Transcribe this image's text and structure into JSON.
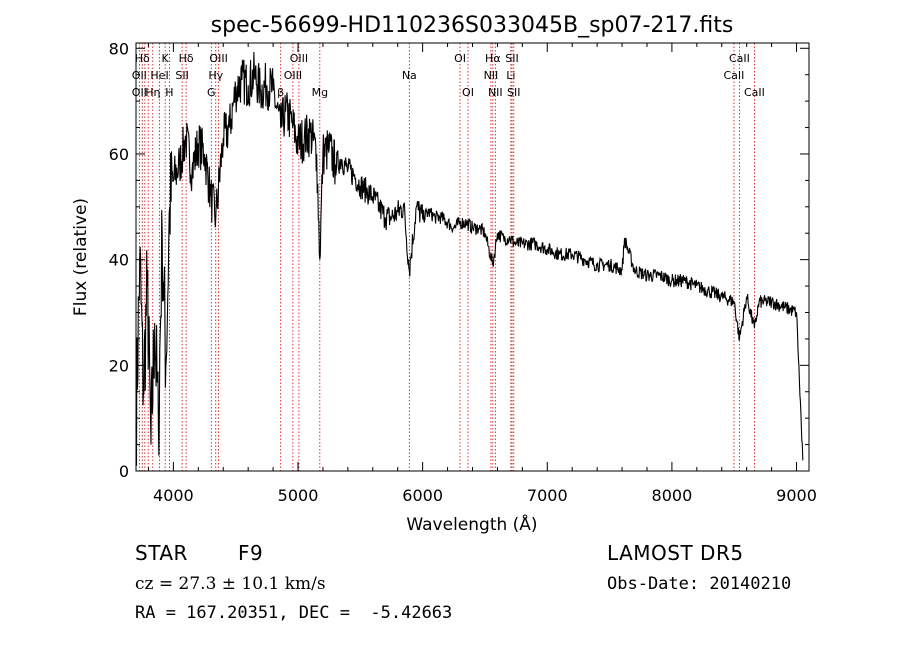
{
  "chart_data": {
    "type": "line",
    "title": "spec-56699-HD110236S033045B_sp07-217.fits",
    "xlabel": "Wavelength (Å)",
    "ylabel": "Flux (relative)",
    "xlim": [
      3700,
      9100
    ],
    "ylim": [
      0,
      81
    ],
    "x_ticks": [
      4000,
      5000,
      6000,
      7000,
      8000,
      9000
    ],
    "x_tick_labels": [
      "4000",
      "5000",
      "6000",
      "7000",
      "8000",
      "9000"
    ],
    "y_ticks": [
      0,
      20,
      40,
      60,
      80
    ],
    "y_tick_labels": [
      "0",
      "20",
      "40",
      "60",
      "80"
    ],
    "grid": false,
    "line_color": "#000000",
    "marker_color": "#cc0000",
    "series": [
      {
        "x": [
          3700,
          3730,
          3760,
          3790,
          3820,
          3850,
          3880,
          3910,
          3940,
          3970,
          4000,
          4050,
          4100,
          4150,
          4200,
          4250,
          4300,
          4340,
          4400,
          4450,
          4500,
          4550,
          4600,
          4650,
          4700,
          4750,
          4800,
          4861,
          4900,
          4950,
          5000,
          5050,
          5100,
          5150,
          5175,
          5200,
          5250,
          5300,
          5350,
          5400,
          5450,
          5500,
          5550,
          5600,
          5650,
          5700,
          5750,
          5800,
          5850,
          5893,
          5950,
          6000,
          6050,
          6100,
          6150,
          6200,
          6250,
          6300,
          6350,
          6400,
          6450,
          6500,
          6563,
          6600,
          6650,
          6700,
          6750,
          6800,
          6900,
          7000,
          7100,
          7200,
          7300,
          7400,
          7500,
          7600,
          7620,
          7700,
          7800,
          7900,
          8000,
          8100,
          8200,
          8300,
          8400,
          8500,
          8542,
          8600,
          8662,
          8700,
          8800,
          8900,
          9000,
          9050
        ],
        "values": [
          8,
          40,
          15,
          35,
          5,
          28,
          8,
          45,
          20,
          50,
          55,
          58,
          63,
          57,
          62,
          60,
          52,
          48,
          63,
          65,
          72,
          74,
          73,
          75,
          72,
          73,
          72,
          65,
          68,
          66,
          62,
          63,
          64,
          60,
          40,
          60,
          61,
          58,
          59,
          57,
          56,
          54,
          53,
          52,
          50,
          48,
          48,
          49,
          50,
          38,
          50,
          48,
          49,
          48,
          48,
          47,
          46,
          47,
          47,
          46,
          46,
          45,
          39,
          45,
          44,
          44,
          43,
          43,
          43,
          42,
          41,
          41,
          40,
          39,
          39,
          38,
          44,
          38,
          37,
          37,
          36,
          36,
          35,
          34,
          33,
          32,
          25,
          33,
          27,
          32,
          32,
          31,
          30,
          2
        ]
      }
    ],
    "annotations": [
      {
        "label": "Hδ",
        "wave": 3750,
        "row": 0
      },
      {
        "label": "K",
        "wave": 3934,
        "row": 0
      },
      {
        "label": "Hδ",
        "wave": 4102,
        "row": 0
      },
      {
        "label": "OIII",
        "wave": 4363,
        "row": 0
      },
      {
        "label": "OIII",
        "wave": 5007,
        "row": 0
      },
      {
        "label": "OI",
        "wave": 6300,
        "row": 0
      },
      {
        "label": "Hα",
        "wave": 6563,
        "row": 0
      },
      {
        "label": "SII",
        "wave": 6717,
        "row": 0
      },
      {
        "label": "CaII",
        "wave": 8542,
        "row": 0
      },
      {
        "label": "OII",
        "wave": 3727,
        "row": 1
      },
      {
        "label": "HeI",
        "wave": 3889,
        "row": 1
      },
      {
        "label": "SII",
        "wave": 4070,
        "row": 1
      },
      {
        "label": "Hγ",
        "wave": 4340,
        "row": 1
      },
      {
        "label": "OIII",
        "wave": 4959,
        "row": 1
      },
      {
        "label": "Na",
        "wave": 5893,
        "row": 1
      },
      {
        "label": "NII",
        "wave": 6548,
        "row": 1
      },
      {
        "label": "Li",
        "wave": 6708,
        "row": 1
      },
      {
        "label": "CaII",
        "wave": 8498,
        "row": 1
      },
      {
        "label": "OII",
        "wave": 3727,
        "row": 2
      },
      {
        "label": "Hη",
        "wave": 3835,
        "row": 2
      },
      {
        "label": "H",
        "wave": 3968,
        "row": 2
      },
      {
        "label": "G",
        "wave": 4304,
        "row": 2
      },
      {
        "label": "β",
        "wave": 4861,
        "row": 2
      },
      {
        "label": "Mg",
        "wave": 5175,
        "row": 2
      },
      {
        "label": "OI",
        "wave": 6364,
        "row": 2
      },
      {
        "label": "NII",
        "wave": 6583,
        "row": 2
      },
      {
        "label": "SII",
        "wave": 6731,
        "row": 2
      },
      {
        "label": "CaII",
        "wave": 8662,
        "row": 2
      }
    ],
    "line_markers": [
      3727,
      3750,
      3771,
      3798,
      3835,
      3889,
      3934,
      3968,
      4070,
      4102,
      4304,
      4340,
      4363,
      4861,
      4959,
      5007,
      5175,
      5893,
      6300,
      6364,
      6548,
      6563,
      6583,
      6708,
      6717,
      6731,
      8498,
      8542,
      8662
    ]
  },
  "info": {
    "object_type": "STAR",
    "subclass": "F9",
    "survey": "LAMOST DR5",
    "cz": "cz = 27.3 ± 10.1 km/s",
    "obs_date": "Obs-Date: 20140210",
    "radec": "RA = 167.20351, DEC =  -5.42663"
  }
}
